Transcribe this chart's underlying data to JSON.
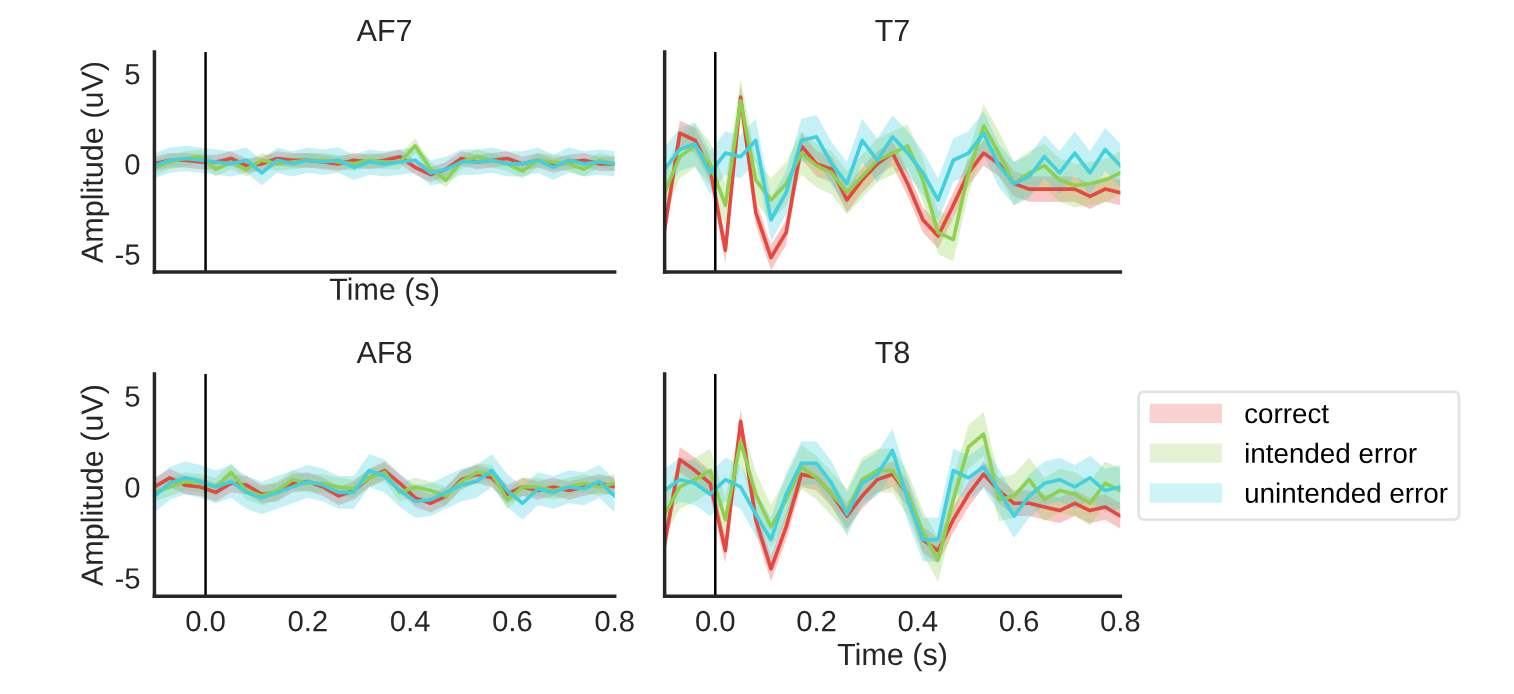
{
  "chart_data": [
    {
      "type": "line",
      "title": "AF7",
      "xlabel": "Time (s)",
      "ylabel": "Amplitude (uV)",
      "tick_labels": "y",
      "xlim": [
        -0.1,
        0.8
      ],
      "ylim": [
        -6,
        6.2
      ],
      "yticks": [
        -5,
        0,
        5
      ],
      "grid": false,
      "legend": false,
      "ref_lines": [
        {
          "axis": "x",
          "value": 0,
          "color": "#000000"
        }
      ],
      "x": [
        -0.1,
        -0.07,
        -0.04,
        -0.01,
        0.02,
        0.05,
        0.08,
        0.11,
        0.14,
        0.17,
        0.2,
        0.23,
        0.26,
        0.29,
        0.32,
        0.35,
        0.38,
        0.41,
        0.44,
        0.47,
        0.5,
        0.53,
        0.56,
        0.59,
        0.62,
        0.65,
        0.68,
        0.71,
        0.74,
        0.77,
        0.8
      ],
      "series": [
        {
          "color": "#e8473f",
          "values": [
            0,
            0.2,
            0.2,
            0.1,
            0.1,
            0.3,
            -0.1,
            0,
            0.3,
            0.2,
            0.2,
            0.1,
            0,
            0.2,
            0.1,
            0.2,
            0.4,
            -0.2,
            -0.6,
            -0.3,
            0.3,
            0.1,
            0.2,
            0.3,
            0,
            0.2,
            -0.1,
            0.1,
            0.2,
            0,
            0
          ],
          "lower": [
            -0.4,
            -0.2,
            -0.2,
            -0.3,
            -0.3,
            -0.1,
            -0.5,
            -0.4,
            -0.1,
            -0.2,
            -0.2,
            -0.3,
            -0.4,
            -0.2,
            -0.3,
            -0.2,
            0,
            -0.6,
            -1.0,
            -0.7,
            -0.1,
            -0.3,
            -0.2,
            -0.1,
            -0.4,
            -0.2,
            -0.5,
            -0.3,
            -0.2,
            -0.4,
            -0.4
          ],
          "upper": [
            0.4,
            0.6,
            0.6,
            0.5,
            0.5,
            0.7,
            0.3,
            0.4,
            0.7,
            0.6,
            0.6,
            0.5,
            0.4,
            0.6,
            0.5,
            0.6,
            0.8,
            0.2,
            -0.2,
            0.1,
            0.7,
            0.5,
            0.6,
            0.7,
            0.4,
            0.6,
            0.3,
            0.5,
            0.6,
            0.4,
            0.4
          ]
        },
        {
          "color": "#8fd14f",
          "values": [
            -0.2,
            0.1,
            0.3,
            0.4,
            -0.3,
            0.1,
            -0.3,
            0.2,
            0,
            0.1,
            0.2,
            0.2,
            0.1,
            0,
            0.2,
            0.1,
            0.1,
            1.0,
            -0.3,
            -0.9,
            0.1,
            0.4,
            0.2,
            0,
            -0.4,
            0.2,
            0.1,
            0,
            -0.3,
            0.2,
            0
          ],
          "lower": [
            -0.6,
            -0.3,
            -0.1,
            0,
            -0.7,
            -0.3,
            -0.7,
            -0.2,
            -0.4,
            -0.3,
            -0.2,
            -0.2,
            -0.3,
            -0.4,
            -0.2,
            -0.3,
            -0.3,
            0.6,
            -0.7,
            -1.3,
            -0.3,
            0,
            -0.2,
            -0.4,
            -0.8,
            -0.2,
            -0.3,
            -0.4,
            -0.7,
            -0.2,
            -0.4
          ],
          "upper": [
            0.2,
            0.5,
            0.7,
            0.8,
            0.1,
            0.5,
            0.1,
            0.6,
            0.4,
            0.5,
            0.6,
            0.6,
            0.5,
            0.4,
            0.6,
            0.5,
            0.5,
            1.4,
            0.1,
            -0.5,
            0.5,
            0.8,
            0.6,
            0.4,
            0,
            0.6,
            0.5,
            0.4,
            0.1,
            0.6,
            0.4
          ]
        },
        {
          "color": "#40d0e0",
          "values": [
            -0.1,
            0.2,
            0.3,
            0.2,
            0.1,
            0,
            0.2,
            -0.5,
            0.2,
            0,
            0.2,
            0.1,
            0.2,
            -0.2,
            0.1,
            0,
            0.1,
            0.2,
            -0.5,
            -0.3,
            0.1,
            0.1,
            0.2,
            0,
            0,
            0.2,
            -0.2,
            0.2,
            0,
            0.1,
            0
          ],
          "lower": [
            -0.8,
            -0.5,
            -0.4,
            -0.5,
            -0.6,
            -0.7,
            -0.5,
            -1.2,
            -0.5,
            -0.7,
            -0.5,
            -0.6,
            -0.5,
            -0.9,
            -0.6,
            -0.7,
            -0.6,
            -0.5,
            -1.2,
            -1.0,
            -0.6,
            -0.6,
            -0.5,
            -0.7,
            -0.7,
            -0.5,
            -0.9,
            -0.5,
            -0.7,
            -0.6,
            -0.7
          ],
          "upper": [
            0.6,
            0.9,
            1.0,
            0.9,
            0.8,
            0.7,
            0.9,
            0.2,
            0.9,
            0.7,
            0.9,
            0.8,
            0.9,
            0.5,
            0.8,
            0.7,
            0.8,
            0.9,
            0.2,
            0.4,
            0.8,
            0.8,
            0.9,
            0.7,
            0.7,
            0.9,
            0.5,
            0.9,
            0.7,
            0.8,
            0.7
          ]
        }
      ]
    },
    {
      "type": "line",
      "title": "T7",
      "tick_labels": false,
      "xlim": [
        -0.1,
        0.8
      ],
      "ylim": [
        -6,
        6.2
      ],
      "grid": false,
      "legend": false,
      "ref_lines": [
        {
          "axis": "x",
          "value": 0,
          "color": "#000000"
        }
      ],
      "x": [
        -0.1,
        -0.07,
        -0.04,
        -0.01,
        0.02,
        0.05,
        0.08,
        0.11,
        0.14,
        0.17,
        0.2,
        0.23,
        0.26,
        0.29,
        0.32,
        0.35,
        0.38,
        0.41,
        0.44,
        0.47,
        0.5,
        0.53,
        0.56,
        0.59,
        0.62,
        0.65,
        0.68,
        0.71,
        0.74,
        0.77,
        0.8
      ],
      "series": [
        {
          "color": "#e8473f",
          "values": [
            -3.6,
            1.7,
            1.3,
            -0.3,
            -4.8,
            3.7,
            -2.7,
            -5.2,
            -3.8,
            1.0,
            0,
            -0.3,
            -2.0,
            -0.9,
            0,
            0.6,
            -1.1,
            -3.1,
            -4.0,
            -2.3,
            -0.5,
            0.6,
            0,
            -1.1,
            -1.4,
            -1.4,
            -1.4,
            -1.4,
            -1.8,
            -1.4,
            -1.6
          ],
          "lower": [
            -4.3,
            1.0,
            0.6,
            -1.0,
            -5.5,
            3.0,
            -3.4,
            -5.9,
            -4.5,
            0.3,
            -0.7,
            -1.0,
            -2.7,
            -1.6,
            -0.7,
            -0.1,
            -1.8,
            -3.8,
            -4.7,
            -3.0,
            -1.2,
            -0.1,
            -0.7,
            -1.8,
            -2.1,
            -2.1,
            -2.1,
            -2.1,
            -2.5,
            -2.1,
            -2.3
          ],
          "upper": [
            -2.9,
            2.4,
            2.0,
            0.4,
            -4.1,
            4.4,
            -2.0,
            -4.5,
            -3.1,
            1.7,
            0.7,
            0.4,
            -1.3,
            -0.2,
            0.7,
            1.3,
            -0.4,
            -2.4,
            -3.3,
            -1.6,
            0.2,
            1.3,
            0.7,
            -0.4,
            -0.7,
            -0.7,
            -0.7,
            -0.7,
            -1.1,
            -0.7,
            -0.9
          ]
        },
        {
          "color": "#8fd14f",
          "values": [
            -1.6,
            0.4,
            1.0,
            0,
            -2.3,
            3.5,
            -0.9,
            -2.0,
            -1.1,
            0.6,
            -0.1,
            -0.5,
            -1.6,
            -0.7,
            0.2,
            0.6,
            1.0,
            -0.9,
            -3.8,
            -4.2,
            -0.5,
            2.1,
            0.6,
            -1.1,
            -0.5,
            -0.1,
            -0.9,
            -1.2,
            -1.1,
            -0.9,
            -0.5
          ],
          "lower": [
            -2.8,
            -0.8,
            -0.2,
            -1.2,
            -3.5,
            2.3,
            -2.1,
            -3.2,
            -2.3,
            -0.6,
            -1.3,
            -1.7,
            -2.8,
            -1.9,
            -1.0,
            -0.6,
            -0.2,
            -2.1,
            -5.0,
            -5.4,
            -1.7,
            0.9,
            -0.6,
            -2.3,
            -1.7,
            -1.3,
            -2.1,
            -2.4,
            -2.3,
            -2.1,
            -1.7
          ],
          "upper": [
            -0.4,
            1.6,
            2.2,
            1.2,
            -1.1,
            4.7,
            0.3,
            -0.8,
            0.1,
            1.8,
            1.1,
            0.7,
            -0.4,
            0.5,
            1.4,
            1.8,
            2.2,
            0.3,
            -2.6,
            -3.0,
            0.7,
            3.3,
            1.8,
            0.1,
            0.7,
            1.1,
            0.3,
            0,
            0.1,
            0.3,
            0.7
          ]
        },
        {
          "color": "#40d0e0",
          "values": [
            -0.3,
            0.8,
            1.1,
            -0.5,
            0.6,
            0.4,
            1.3,
            -3.1,
            -1.6,
            1.3,
            1.5,
            0,
            -1.1,
            1.3,
            0.2,
            1.5,
            0.6,
            -0.5,
            -2.0,
            0.2,
            0.6,
            1.7,
            -0.1,
            -1.1,
            -0.7,
            0.4,
            -0.5,
            0.6,
            -0.5,
            0.8,
            -0.1
          ],
          "lower": [
            -1.5,
            -0.4,
            -0.1,
            -1.7,
            -0.6,
            -0.8,
            0.1,
            -4.3,
            -2.8,
            0.1,
            0.3,
            -1.2,
            -2.3,
            0.1,
            -1.0,
            0.3,
            -0.6,
            -1.7,
            -3.2,
            -1.0,
            -0.6,
            0.5,
            -1.3,
            -2.3,
            -1.9,
            -0.8,
            -1.7,
            -0.6,
            -1.7,
            -0.4,
            -1.3
          ],
          "upper": [
            0.9,
            2.0,
            2.3,
            0.7,
            1.8,
            1.6,
            2.5,
            -1.9,
            -0.4,
            2.5,
            2.7,
            1.2,
            0.1,
            2.5,
            1.4,
            2.7,
            1.8,
            0.7,
            -0.8,
            1.4,
            1.8,
            2.9,
            1.1,
            0.1,
            0.5,
            1.6,
            0.7,
            1.8,
            0.7,
            2.0,
            1.1
          ]
        }
      ]
    },
    {
      "type": "line",
      "title": "AF8",
      "ylabel": "Amplitude (uV)",
      "xlim": [
        -0.1,
        0.8
      ],
      "ylim": [
        -6,
        6.2
      ],
      "yticks": [
        -5,
        0,
        5
      ],
      "xticks": [
        {
          "value": 0,
          "label": "0.0"
        },
        {
          "value": 0.2,
          "label": "0.2"
        },
        {
          "value": 0.4,
          "label": "0.4"
        },
        {
          "value": 0.6,
          "label": "0.6"
        },
        {
          "value": 0.8,
          "label": "0.8"
        }
      ],
      "grid": false,
      "legend": false,
      "ref_lines": [
        {
          "axis": "x",
          "value": 0,
          "color": "#000000"
        }
      ],
      "x": [
        -0.1,
        -0.07,
        -0.04,
        -0.01,
        0.02,
        0.05,
        0.08,
        0.11,
        0.14,
        0.17,
        0.2,
        0.23,
        0.26,
        0.29,
        0.32,
        0.35,
        0.38,
        0.41,
        0.44,
        0.47,
        0.5,
        0.53,
        0.56,
        0.59,
        0.62,
        0.65,
        0.68,
        0.71,
        0.74,
        0.77,
        0.8
      ],
      "series": [
        {
          "color": "#e8473f",
          "values": [
            0,
            0.5,
            0.1,
            0,
            -0.3,
            0.2,
            0.1,
            -0.4,
            -0.3,
            0.2,
            0.3,
            0,
            -0.5,
            -0.2,
            0.5,
            0.9,
            0.2,
            -0.6,
            -0.9,
            -0.5,
            0.4,
            0.7,
            0.5,
            -0.4,
            0,
            -0.2,
            0,
            -0.2,
            0,
            0.2,
            0
          ],
          "lower": [
            -0.5,
            0,
            -0.4,
            -0.5,
            -0.8,
            -0.3,
            -0.4,
            -0.9,
            -0.8,
            -0.3,
            -0.2,
            -0.5,
            -1.0,
            -0.7,
            0,
            0.4,
            -0.3,
            -1.1,
            -1.4,
            -1.0,
            -0.1,
            0.2,
            0,
            -0.9,
            -0.5,
            -0.7,
            -0.5,
            -0.7,
            -0.5,
            -0.3,
            -0.5
          ],
          "upper": [
            0.5,
            1.0,
            0.6,
            0.5,
            0.2,
            0.7,
            0.6,
            0.1,
            0.2,
            0.7,
            0.8,
            0.5,
            0,
            0.3,
            1.0,
            1.4,
            0.7,
            -0.1,
            -0.4,
            0,
            0.9,
            1.2,
            1.0,
            0.1,
            0.5,
            0.3,
            0.5,
            0.3,
            0.5,
            0.7,
            0.5
          ]
        },
        {
          "color": "#8fd14f",
          "values": [
            -0.3,
            0,
            0.3,
            0.2,
            0,
            0.8,
            -0.2,
            -0.5,
            -0.2,
            0.4,
            0.2,
            0.2,
            0,
            -0.1,
            0.5,
            0.8,
            -0.3,
            0,
            -0.2,
            -0.5,
            0.3,
            0.8,
            0.7,
            -0.7,
            0,
            0,
            -0.2,
            0,
            0.2,
            0,
            0.2
          ],
          "lower": [
            -0.8,
            -0.5,
            -0.2,
            -0.3,
            -0.5,
            0.3,
            -0.7,
            -1.0,
            -0.7,
            -0.1,
            -0.3,
            -0.3,
            -0.5,
            -0.6,
            0,
            0.3,
            -0.8,
            -0.5,
            -0.7,
            -1.0,
            -0.2,
            0.3,
            0.2,
            -1.2,
            -0.5,
            -0.5,
            -0.7,
            -0.5,
            -0.3,
            -0.5,
            -0.3
          ],
          "upper": [
            0.2,
            0.5,
            0.8,
            0.7,
            0.5,
            1.3,
            0.3,
            0,
            0.3,
            0.9,
            0.7,
            0.7,
            0.5,
            0.4,
            1.0,
            1.3,
            0.2,
            0.5,
            0.3,
            0,
            0.8,
            1.3,
            1.2,
            -0.2,
            0.5,
            0.5,
            0.3,
            0.5,
            0.7,
            0.5,
            0.7
          ]
        },
        {
          "color": "#40d0e0",
          "values": [
            -0.5,
            0.2,
            0.5,
            0.3,
            0,
            0.3,
            -0.3,
            -0.6,
            -0.3,
            0,
            0.3,
            0.1,
            -0.3,
            -0.3,
            0.9,
            0.6,
            -0.2,
            -0.8,
            -0.7,
            -0.3,
            0.1,
            0.3,
            0.9,
            -0.2,
            -0.9,
            -0.1,
            -0.3,
            0,
            -0.1,
            0.3,
            -0.5
          ],
          "lower": [
            -1.4,
            -0.7,
            -0.4,
            -0.6,
            -0.9,
            -0.6,
            -1.2,
            -1.5,
            -1.2,
            -0.9,
            -0.6,
            -0.8,
            -1.2,
            -1.2,
            0,
            -0.3,
            -1.1,
            -1.7,
            -1.6,
            -1.2,
            -0.8,
            -0.6,
            0,
            -1.1,
            -1.8,
            -1.0,
            -1.2,
            -0.9,
            -1.0,
            -0.6,
            -1.4
          ],
          "upper": [
            0.4,
            1.1,
            1.4,
            1.2,
            0.9,
            1.2,
            0.6,
            0.3,
            0.6,
            0.9,
            1.2,
            1.0,
            0.6,
            0.6,
            1.8,
            1.5,
            0.7,
            0.1,
            0.2,
            0.6,
            1.0,
            1.2,
            1.8,
            0.7,
            0,
            0.8,
            0.6,
            0.9,
            0.8,
            1.2,
            0.4
          ]
        }
      ]
    },
    {
      "type": "line",
      "title": "T8",
      "xlabel": "Time (s)",
      "tick_labels": "x",
      "xlim": [
        -0.1,
        0.8
      ],
      "ylim": [
        -6,
        6.2
      ],
      "xticks": [
        {
          "value": 0,
          "label": "0.0"
        },
        {
          "value": 0.2,
          "label": "0.2"
        },
        {
          "value": 0.4,
          "label": "0.4"
        },
        {
          "value": 0.6,
          "label": "0.6"
        },
        {
          "value": 0.8,
          "label": "0.8"
        }
      ],
      "grid": false,
      "legend": "right",
      "ref_lines": [
        {
          "axis": "x",
          "value": 0,
          "color": "#000000"
        }
      ],
      "x": [
        -0.1,
        -0.07,
        -0.04,
        -0.01,
        0.02,
        0.05,
        0.08,
        0.11,
        0.14,
        0.17,
        0.2,
        0.23,
        0.26,
        0.29,
        0.32,
        0.35,
        0.38,
        0.41,
        0.44,
        0.47,
        0.5,
        0.53,
        0.56,
        0.59,
        0.62,
        0.65,
        0.68,
        0.71,
        0.74,
        0.77,
        0.8
      ],
      "series": [
        {
          "name": "correct",
          "color": "#e8473f",
          "values": [
            -3.1,
            1.5,
            0.9,
            0.2,
            -3.5,
            3.6,
            -1.8,
            -4.5,
            -2.2,
            0.7,
            0.5,
            -0.4,
            -1.6,
            -0.5,
            0.4,
            0.7,
            -0.4,
            -2.9,
            -3.5,
            -1.8,
            -0.4,
            0.7,
            -0.2,
            -0.9,
            -0.9,
            -1.1,
            -1.3,
            -0.9,
            -1.3,
            -1.1,
            -1.6
          ],
          "lower": [
            -3.8,
            0.8,
            0.2,
            -0.5,
            -4.2,
            2.9,
            -2.5,
            -5.2,
            -2.9,
            0,
            -0.2,
            -1.1,
            -2.3,
            -1.2,
            -0.3,
            0,
            -1.1,
            -3.6,
            -4.2,
            -2.5,
            -1.1,
            0,
            -0.9,
            -1.6,
            -1.6,
            -1.8,
            -2.0,
            -1.6,
            -2.0,
            -1.8,
            -2.3
          ],
          "upper": [
            -2.4,
            2.2,
            1.6,
            0.9,
            -2.8,
            4.3,
            -1.1,
            -3.8,
            -1.5,
            1.4,
            1.2,
            0.3,
            -0.9,
            0.2,
            1.1,
            1.4,
            0.3,
            -2.2,
            -2.8,
            -1.1,
            0.3,
            1.4,
            0.5,
            -0.2,
            -0.2,
            -0.4,
            -0.6,
            -0.2,
            -0.6,
            -0.4,
            -0.9
          ]
        },
        {
          "name": "intended error",
          "color": "#8fd14f",
          "values": [
            -1.5,
            0,
            0.4,
            0.9,
            -1.8,
            2.5,
            -0.4,
            -2.2,
            -0.7,
            1.1,
            0.5,
            -0.4,
            -1.3,
            0.4,
            0.9,
            0.9,
            -0.4,
            -2.5,
            -4.0,
            -0.7,
            2.2,
            2.9,
            -0.7,
            -0.5,
            0.4,
            -0.7,
            -0.2,
            -0.4,
            -0.9,
            0.2,
            -0.2
          ],
          "lower": [
            -2.7,
            -1.2,
            -0.8,
            -0.3,
            -3.0,
            1.3,
            -1.6,
            -3.4,
            -1.9,
            -0.1,
            -0.7,
            -1.6,
            -2.5,
            -0.8,
            -0.3,
            -0.3,
            -1.6,
            -3.7,
            -5.2,
            -1.9,
            1.0,
            1.7,
            -1.9,
            -1.7,
            -0.8,
            -1.9,
            -1.4,
            -1.6,
            -2.1,
            -1.0,
            -1.4
          ],
          "upper": [
            -0.3,
            1.2,
            1.6,
            2.1,
            -0.6,
            3.7,
            0.8,
            -1.0,
            0.5,
            2.3,
            1.7,
            0.8,
            -0.1,
            1.6,
            2.1,
            2.1,
            0.8,
            -1.3,
            -2.8,
            0.5,
            3.4,
            4.1,
            0.5,
            0.7,
            1.6,
            0.5,
            1.0,
            0.8,
            0.3,
            1.4,
            1.0
          ]
        },
        {
          "name": "unintended error",
          "color": "#40d0e0",
          "values": [
            -0.2,
            0.4,
            0.2,
            -0.4,
            0.4,
            0,
            -1.5,
            -2.9,
            -0.4,
            1.3,
            1.3,
            0.2,
            -1.5,
            0.2,
            0.7,
            2.0,
            -0.7,
            -2.9,
            -2.9,
            0.9,
            0.5,
            1.1,
            -0.2,
            -1.6,
            -0.5,
            0.2,
            0.4,
            0,
            0.5,
            -0.2,
            0
          ],
          "lower": [
            -1.4,
            -0.8,
            -1.0,
            -1.6,
            -0.8,
            -1.2,
            -2.7,
            -4.1,
            -1.6,
            0.1,
            0.1,
            -1.0,
            -2.7,
            -1.0,
            -0.5,
            0.8,
            -1.9,
            -4.1,
            -4.1,
            -0.3,
            -0.7,
            -0.1,
            -1.4,
            -2.8,
            -1.7,
            -1.0,
            -0.8,
            -1.2,
            -0.7,
            -1.4,
            -1.2
          ],
          "upper": [
            1.0,
            1.6,
            1.4,
            0.8,
            1.6,
            1.2,
            -0.3,
            -1.7,
            0.8,
            2.5,
            2.5,
            1.4,
            -0.3,
            1.4,
            1.9,
            3.2,
            0.5,
            -1.7,
            -1.7,
            2.1,
            1.7,
            2.3,
            1.0,
            -0.4,
            0.7,
            1.4,
            1.6,
            1.2,
            1.7,
            1.0,
            1.2
          ]
        }
      ]
    }
  ]
}
